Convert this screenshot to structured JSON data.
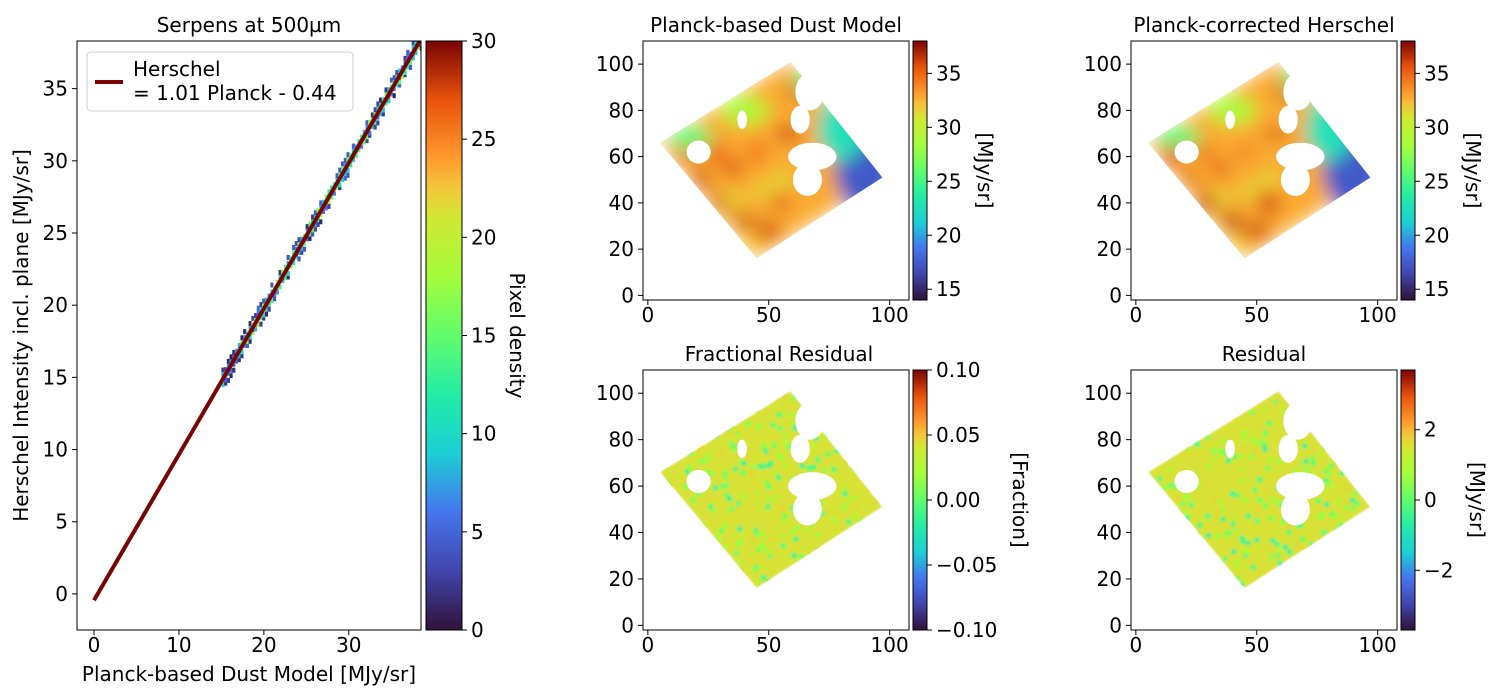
{
  "chart_data": [
    {
      "type": "scatter",
      "title": "Serpens at 500µm",
      "xlabel": "Planck-based Dust Model [MJy/sr]",
      "ylabel": "Herschel Intensity incl. plane [MJy/sr]",
      "xlim": [
        -2,
        38.5
      ],
      "ylim": [
        -2.5,
        38.3
      ],
      "xticks": [
        0,
        10,
        20,
        30
      ],
      "yticks": [
        0,
        5,
        10,
        15,
        20,
        25,
        30,
        35
      ],
      "description_kind": "2D histogram of pixel density along the 1:1 relation",
      "density_range_x": [
        15,
        38.5
      ],
      "fit": {
        "slope": 1.01,
        "intercept": -0.44,
        "x_range": [
          0,
          38.5
        ],
        "color": "#7a0403"
      },
      "legend": {
        "label_line1": "Herschel",
        "label_line2": "= 1.01 Planck - 0.44",
        "placement": "upper-left"
      },
      "colorbar": {
        "label": "Pixel density",
        "range": [
          0,
          30
        ],
        "ticks": [
          0,
          5,
          10,
          15,
          20,
          25,
          30
        ],
        "colormap": "turbo"
      }
    },
    {
      "type": "heatmap",
      "title": "Planck-based Dust Model",
      "xlim": [
        -2,
        108
      ],
      "ylim": [
        -2,
        110
      ],
      "xticks": [
        0,
        50,
        100
      ],
      "yticks": [
        0,
        20,
        40,
        60,
        80,
        100
      ],
      "map_kind": "dust",
      "colorbar": {
        "label": "[MJy/sr]",
        "range": [
          14,
          38
        ],
        "ticks": [
          15,
          20,
          25,
          30,
          35
        ],
        "colormap": "turbo"
      }
    },
    {
      "type": "heatmap",
      "title": "Planck-corrected Herschel",
      "xlim": [
        -2,
        108
      ],
      "ylim": [
        -2,
        110
      ],
      "xticks": [
        0,
        50,
        100
      ],
      "yticks": [
        0,
        20,
        40,
        60,
        80,
        100
      ],
      "map_kind": "dust",
      "colorbar": {
        "label": "[MJy/sr]",
        "range": [
          14,
          38
        ],
        "ticks": [
          15,
          20,
          25,
          30,
          35
        ],
        "colormap": "turbo"
      }
    },
    {
      "type": "heatmap",
      "title": "Fractional Residual",
      "xlim": [
        -2,
        108
      ],
      "ylim": [
        -2,
        110
      ],
      "xticks": [
        0,
        50,
        100
      ],
      "yticks": [
        0,
        20,
        40,
        60,
        80,
        100
      ],
      "map_kind": "residual",
      "colorbar": {
        "label": "[Fraction]",
        "range": [
          -0.1,
          0.1
        ],
        "ticks": [
          -0.1,
          -0.05,
          0.0,
          0.05,
          0.1
        ],
        "tick_labels": [
          "−0.10",
          "−0.05",
          "0.00",
          "0.05",
          "0.10"
        ],
        "colormap": "turbo"
      }
    },
    {
      "type": "heatmap",
      "title": "Residual",
      "xlim": [
        -2,
        108
      ],
      "ylim": [
        -2,
        110
      ],
      "xticks": [
        0,
        50,
        100
      ],
      "yticks": [
        0,
        20,
        40,
        60,
        80,
        100
      ],
      "map_kind": "residual",
      "colorbar": {
        "label": "[MJy/sr]",
        "range": [
          -3.7,
          3.7
        ],
        "ticks": [
          -2,
          0,
          2
        ],
        "tick_labels": [
          "−2",
          "0",
          "2"
        ],
        "colormap": "turbo"
      }
    }
  ],
  "map_geometry": {
    "diamond_vertices": [
      [
        5,
        66
      ],
      [
        59,
        101
      ],
      [
        97,
        51
      ],
      [
        45,
        16
      ]
    ],
    "holes": [
      {
        "cx": 67,
        "cy": 88,
        "rx": 6,
        "ry": 8
      },
      {
        "cx": 63,
        "cy": 76,
        "rx": 4,
        "ry": 6
      },
      {
        "cx": 68,
        "cy": 60,
        "rx": 10,
        "ry": 6
      },
      {
        "cx": 66,
        "cy": 50,
        "rx": 6,
        "ry": 7
      },
      {
        "cx": 21,
        "cy": 62,
        "rx": 5,
        "ry": 5
      },
      {
        "cx": 39,
        "cy": 76,
        "rx": 2,
        "ry": 4
      }
    ]
  }
}
